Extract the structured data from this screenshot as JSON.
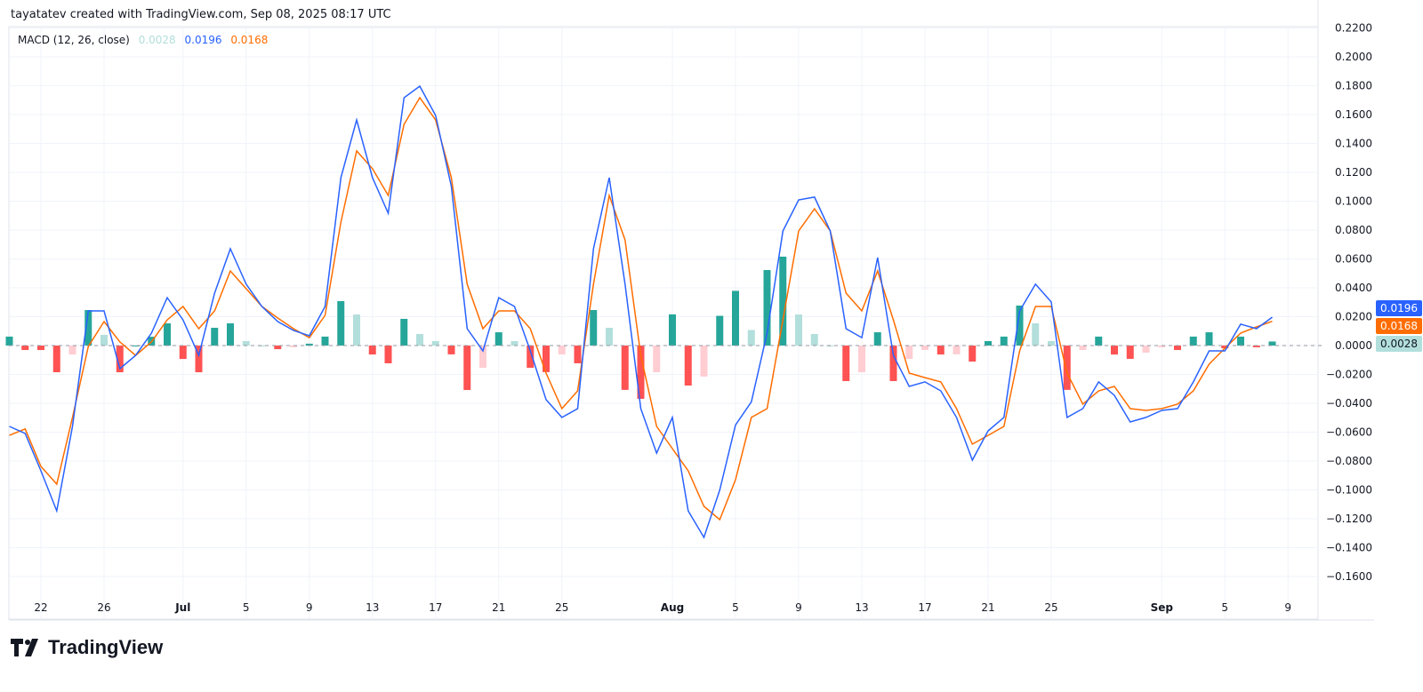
{
  "header": {
    "attribution": "tayatatev created with TradingView.com, Sep 08, 2025 08:17 UTC"
  },
  "legend": {
    "indicator": "MACD (12, 26, close)",
    "histogram_value": "0.0028",
    "macd_value": "0.0196",
    "signal_value": "0.0168"
  },
  "logo": {
    "text": "TradingView"
  },
  "colors": {
    "macd": "#2962ff",
    "signal": "#ff6d00",
    "hist_pos_strong": "#26a69a",
    "hist_pos_weak": "#b2dfdb",
    "hist_neg_strong": "#ff5252",
    "hist_neg_weak": "#ffcdd2"
  },
  "chart_data": {
    "type": "line",
    "ylim": [
      -0.17,
      0.22
    ],
    "grid": true,
    "yticks": [
      "0.2200",
      "0.2000",
      "0.1800",
      "0.1600",
      "0.1400",
      "0.1200",
      "0.1000",
      "0.0800",
      "0.0600",
      "0.0400",
      "0.0200",
      "0.0000",
      "−0.0200",
      "−0.0400",
      "−0.0600",
      "−0.0800",
      "−0.1000",
      "−0.1200",
      "−0.1400",
      "−0.1600"
    ],
    "xticks": [
      {
        "label": "22",
        "date": "2025-06-22"
      },
      {
        "label": "26",
        "date": "2025-06-26"
      },
      {
        "label": "Jul",
        "date": "2025-07-01",
        "bold": true
      },
      {
        "label": "5",
        "date": "2025-07-05"
      },
      {
        "label": "9",
        "date": "2025-07-09"
      },
      {
        "label": "13",
        "date": "2025-07-13"
      },
      {
        "label": "17",
        "date": "2025-07-17"
      },
      {
        "label": "21",
        "date": "2025-07-21"
      },
      {
        "label": "25",
        "date": "2025-07-25"
      },
      {
        "label": "Aug",
        "date": "2025-08-01",
        "bold": true
      },
      {
        "label": "5",
        "date": "2025-08-05"
      },
      {
        "label": "9",
        "date": "2025-08-09"
      },
      {
        "label": "13",
        "date": "2025-08-13"
      },
      {
        "label": "17",
        "date": "2025-08-17"
      },
      {
        "label": "21",
        "date": "2025-08-21"
      },
      {
        "label": "25",
        "date": "2025-08-25"
      },
      {
        "label": "Sep",
        "date": "2025-09-01",
        "bold": true
      },
      {
        "label": "5",
        "date": "2025-09-05"
      },
      {
        "label": "9",
        "date": "2025-09-09"
      }
    ],
    "start_date": "2025-06-20",
    "series": [
      {
        "name": "MACD",
        "values": [
          -0.056,
          -0.0609,
          -0.0868,
          -0.1145,
          -0.056,
          0.024,
          0.024,
          -0.016,
          -0.0068,
          0.0086,
          0.0332,
          0.0178,
          -0.0068,
          0.0363,
          0.0671,
          0.0425,
          0.0271,
          0.0166,
          0.0105,
          0.0068,
          0.0271,
          0.1163,
          0.1563,
          0.1163,
          0.0917,
          0.1717,
          0.1797,
          0.1594,
          0.1102,
          0.0117,
          -0.0037,
          0.0332,
          0.0271,
          -0.0037,
          -0.0375,
          -0.0498,
          -0.0437,
          0.0671,
          0.1163,
          0.0425,
          -0.0437,
          -0.0745,
          -0.0498,
          -0.1145,
          -0.1329,
          -0.1,
          -0.055,
          -0.039,
          0.0086,
          0.0794,
          0.1009,
          0.1028,
          0.0794,
          0.0117,
          0.0055,
          0.0609,
          -0.0068,
          -0.0283,
          -0.0252,
          -0.0314,
          -0.0498,
          -0.0794,
          -0.0591,
          -0.0498,
          0.024,
          0.0425,
          0.0302,
          -0.0498,
          -0.0437,
          -0.0252,
          -0.0345,
          -0.0529,
          -0.0498,
          -0.0449,
          -0.0437,
          -0.0252,
          -0.0037,
          -0.0037,
          0.0148,
          0.0117,
          0.0196
        ]
      },
      {
        "name": "Signal",
        "values": [
          -0.0622,
          -0.0578,
          -0.0837,
          -0.096,
          -0.0498,
          -0.0006,
          0.0166,
          0.0025,
          -0.0068,
          0.0025,
          0.0178,
          0.0271,
          0.0117,
          0.024,
          0.0517,
          0.0394,
          0.0271,
          0.0191,
          0.0117,
          0.0055,
          0.0209,
          0.0855,
          0.1348,
          0.1225,
          0.104,
          0.1532,
          0.1717,
          0.1563,
          0.1163,
          0.0425,
          0.0117,
          0.024,
          0.024,
          0.0117,
          -0.0191,
          -0.0437,
          -0.0314,
          0.0425,
          0.104,
          0.0732,
          -0.0068,
          -0.056,
          -0.0714,
          -0.0868,
          -0.1114,
          -0.1206,
          -0.0929,
          -0.0498,
          -0.0437,
          0.0178,
          0.0794,
          0.0948,
          0.0794,
          0.0363,
          0.024,
          0.0517,
          0.0178,
          -0.0191,
          -0.0222,
          -0.0252,
          -0.0437,
          -0.0683,
          -0.0622,
          -0.056,
          -0.0037,
          0.0271,
          0.0271,
          -0.0191,
          -0.0406,
          -0.0314,
          -0.0283,
          -0.0437,
          -0.0449,
          -0.0437,
          -0.0406,
          -0.0314,
          -0.0129,
          -0.0018,
          0.0086,
          0.0129,
          0.0168
        ]
      },
      {
        "name": "Histogram",
        "derived": "MACD − Signal"
      }
    ],
    "last_values": {
      "macd": "0.0196",
      "signal": "0.0168",
      "histogram": "0.0028"
    }
  }
}
